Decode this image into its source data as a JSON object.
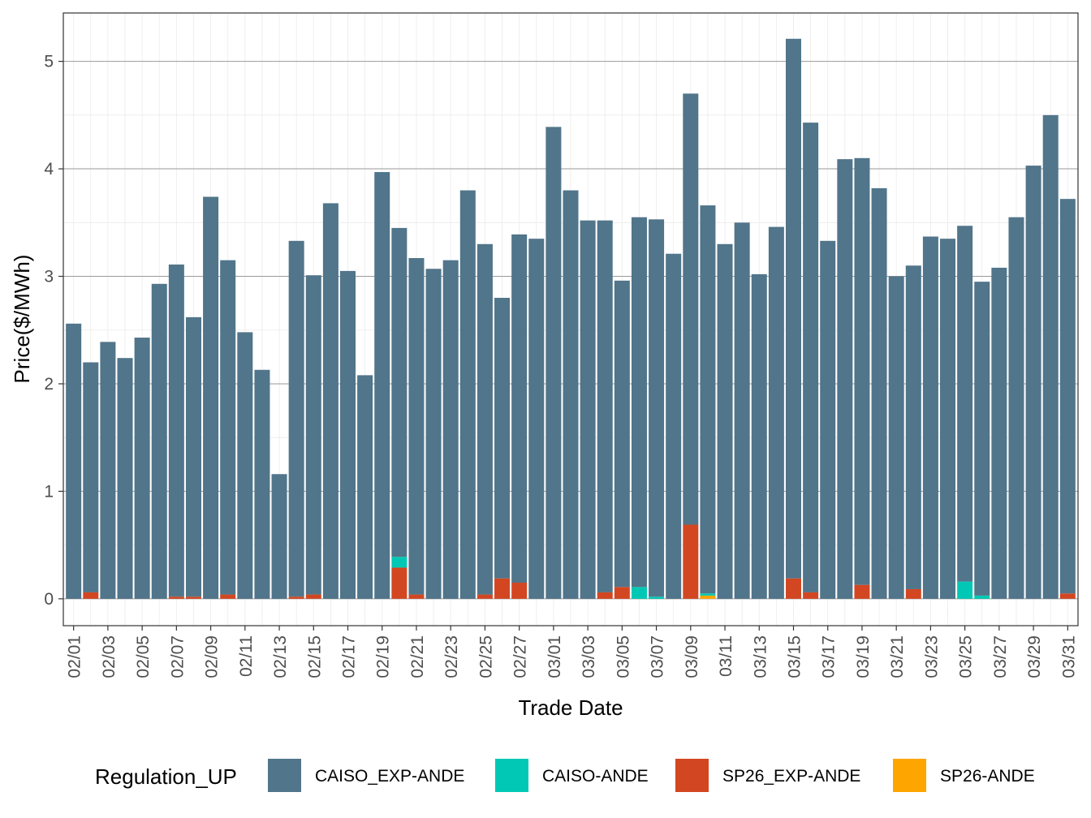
{
  "chart_data": {
    "type": "bar",
    "stacked": true,
    "xlabel": "Trade Date",
    "ylabel": "Price($/MWh)",
    "ylim": [
      -0.25,
      5.45
    ],
    "yticks": [
      0,
      1,
      2,
      3,
      4,
      5
    ],
    "ytick_labels": [
      "0",
      "1",
      "2",
      "3",
      "4",
      "5"
    ],
    "categories": [
      "02/01",
      "02/02",
      "02/03",
      "02/04",
      "02/05",
      "02/06",
      "02/07",
      "02/08",
      "02/09",
      "02/10",
      "02/11",
      "02/12",
      "02/13",
      "02/14",
      "02/15",
      "02/16",
      "02/17",
      "02/18",
      "02/19",
      "02/20",
      "02/21",
      "02/22",
      "02/23",
      "02/24",
      "02/25",
      "02/26",
      "02/27",
      "02/28",
      "03/01",
      "03/02",
      "03/03",
      "03/04",
      "03/05",
      "03/06",
      "03/07",
      "03/08",
      "03/09",
      "03/10",
      "03/11",
      "03/12",
      "03/13",
      "03/14",
      "03/15",
      "03/16",
      "03/17",
      "03/18",
      "03/19",
      "03/20",
      "03/21",
      "03/22",
      "03/23",
      "03/24",
      "03/25",
      "03/26",
      "03/27",
      "03/28",
      "03/29",
      "03/30",
      "03/31"
    ],
    "xtick_labels": [
      "02/01",
      "02/03",
      "02/05",
      "02/07",
      "02/09",
      "02/11",
      "02/13",
      "02/15",
      "02/17",
      "02/19",
      "02/21",
      "02/23",
      "02/25",
      "02/27",
      "03/01",
      "03/03",
      "03/05",
      "03/07",
      "03/09",
      "03/11",
      "03/13",
      "03/15",
      "03/17",
      "03/19",
      "03/21",
      "03/23",
      "03/25",
      "03/27",
      "03/29",
      "03/31"
    ],
    "legend_title": "Regulation_UP",
    "legend_position": "bottom",
    "series": [
      {
        "name": "CAISO_EXP-ANDE",
        "color": "#51758a",
        "values": [
          2.56,
          2.14,
          2.39,
          2.24,
          2.43,
          2.93,
          3.09,
          2.6,
          3.74,
          3.11,
          2.48,
          2.13,
          1.16,
          3.31,
          2.97,
          3.68,
          3.05,
          2.08,
          3.97,
          3.06,
          3.13,
          3.07,
          3.15,
          3.8,
          3.26,
          2.61,
          3.24,
          3.35,
          4.39,
          3.8,
          3.52,
          3.46,
          2.85,
          3.44,
          3.51,
          3.21,
          4.01,
          3.61,
          3.3,
          3.5,
          3.02,
          3.46,
          5.02,
          4.37,
          3.33,
          4.09,
          3.97,
          3.82,
          3.0,
          3.01,
          3.37,
          3.35,
          3.31,
          2.92,
          3.08,
          3.55,
          4.03,
          4.5,
          3.67
        ]
      },
      {
        "name": "CAISO-ANDE",
        "color": "#00c8b4",
        "values": [
          0,
          0,
          0,
          0,
          0,
          0,
          0,
          0,
          0,
          0,
          0,
          0,
          0,
          0,
          0,
          0,
          0,
          0,
          0,
          0.1,
          0,
          0,
          0,
          0,
          0,
          0,
          0,
          0,
          0,
          0,
          0,
          0,
          0,
          0.11,
          0.02,
          0,
          0,
          0.02,
          0,
          0,
          0,
          0,
          0,
          0,
          0,
          0,
          0,
          0,
          0,
          0,
          0,
          0,
          0.16,
          0.03,
          0,
          0,
          0,
          0,
          0
        ]
      },
      {
        "name": "SP26_EXP-ANDE",
        "color": "#d24722",
        "values": [
          0,
          0.06,
          0,
          0,
          0,
          0,
          0.02,
          0.02,
          0,
          0.04,
          0,
          0,
          0,
          0.02,
          0.04,
          0,
          0,
          0,
          0,
          0.29,
          0.04,
          0,
          0,
          0,
          0.04,
          0.19,
          0.15,
          0,
          0,
          0,
          0,
          0.06,
          0.11,
          0,
          0,
          0,
          0.69,
          0,
          0,
          0,
          0,
          0,
          0.19,
          0.06,
          0,
          0,
          0.13,
          0,
          0,
          0.09,
          0,
          0,
          0,
          0,
          0,
          0,
          0,
          0,
          0.05
        ]
      },
      {
        "name": "SP26-ANDE",
        "color": "#ffa500",
        "values": [
          0,
          0,
          0,
          0,
          0,
          0,
          0,
          0,
          0,
          0,
          0,
          0,
          0,
          0,
          0,
          0,
          0,
          0,
          0,
          0,
          0,
          0,
          0,
          0,
          0,
          0,
          0,
          0,
          0,
          0,
          0,
          0,
          0,
          0,
          0,
          0,
          0,
          0.03,
          0,
          0,
          0,
          0,
          0,
          0,
          0,
          0,
          0,
          0,
          0,
          0,
          0,
          0,
          0,
          0,
          0,
          0,
          0,
          0,
          0
        ]
      }
    ]
  }
}
